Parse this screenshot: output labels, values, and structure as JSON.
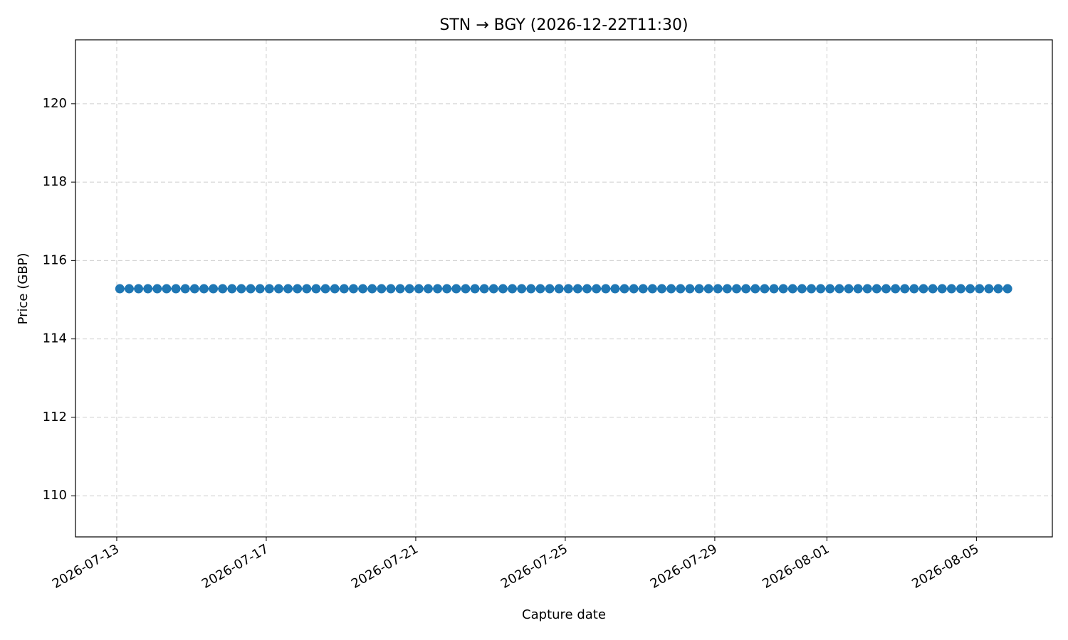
{
  "chart_data": {
    "type": "line",
    "title": "STN → BGY (2026-12-22T11:30)",
    "x_label": "Capture date",
    "y_label": "Price (GBP)",
    "x": [
      "2026-07-13T02:00",
      "2026-07-13T08:00",
      "2026-07-13T14:00",
      "2026-07-13T20:00",
      "2026-07-14T02:00",
      "2026-07-14T08:00",
      "2026-07-14T14:00",
      "2026-07-14T20:00",
      "2026-07-15T02:00",
      "2026-07-15T08:00",
      "2026-07-15T14:00",
      "2026-07-15T20:00",
      "2026-07-16T02:00",
      "2026-07-16T08:00",
      "2026-07-16T14:00",
      "2026-07-16T20:00",
      "2026-07-17T02:00",
      "2026-07-17T08:00",
      "2026-07-17T14:00",
      "2026-07-17T20:00",
      "2026-07-18T02:00",
      "2026-07-18T08:00",
      "2026-07-18T14:00",
      "2026-07-18T20:00",
      "2026-07-19T02:00",
      "2026-07-19T08:00",
      "2026-07-19T14:00",
      "2026-07-19T20:00",
      "2026-07-20T02:00",
      "2026-07-20T08:00",
      "2026-07-20T14:00",
      "2026-07-20T20:00",
      "2026-07-21T02:00",
      "2026-07-21T08:00",
      "2026-07-21T14:00",
      "2026-07-21T20:00",
      "2026-07-22T02:00",
      "2026-07-22T08:00",
      "2026-07-22T14:00",
      "2026-07-22T20:00",
      "2026-07-23T02:00",
      "2026-07-23T08:00",
      "2026-07-23T14:00",
      "2026-07-23T20:00",
      "2026-07-24T02:00",
      "2026-07-24T08:00",
      "2026-07-24T14:00",
      "2026-07-24T20:00",
      "2026-07-25T02:00",
      "2026-07-25T08:00",
      "2026-07-25T14:00",
      "2026-07-25T20:00",
      "2026-07-26T02:00",
      "2026-07-26T08:00",
      "2026-07-26T14:00",
      "2026-07-26T20:00",
      "2026-07-27T02:00",
      "2026-07-27T08:00",
      "2026-07-27T14:00",
      "2026-07-27T20:00",
      "2026-07-28T02:00",
      "2026-07-28T08:00",
      "2026-07-28T14:00",
      "2026-07-28T20:00",
      "2026-07-29T02:00",
      "2026-07-29T08:00",
      "2026-07-29T14:00",
      "2026-07-29T20:00",
      "2026-07-30T02:00",
      "2026-07-30T08:00",
      "2026-07-30T14:00",
      "2026-07-30T20:00",
      "2026-07-31T02:00",
      "2026-07-31T08:00",
      "2026-07-31T14:00",
      "2026-07-31T20:00",
      "2026-08-01T02:00",
      "2026-08-01T08:00",
      "2026-08-01T14:00",
      "2026-08-01T20:00",
      "2026-08-02T02:00",
      "2026-08-02T08:00",
      "2026-08-02T14:00",
      "2026-08-02T20:00",
      "2026-08-03T02:00",
      "2026-08-03T08:00",
      "2026-08-03T14:00",
      "2026-08-03T20:00",
      "2026-08-04T02:00",
      "2026-08-04T08:00",
      "2026-08-04T14:00",
      "2026-08-04T20:00",
      "2026-08-05T02:00",
      "2026-08-05T08:00",
      "2026-08-05T14:00",
      "2026-08-05T20:00"
    ],
    "values": [
      115.28,
      115.28,
      115.28,
      115.28,
      115.28,
      115.28,
      115.28,
      115.28,
      115.28,
      115.28,
      115.28,
      115.28,
      115.28,
      115.28,
      115.28,
      115.28,
      115.28,
      115.28,
      115.28,
      115.28,
      115.28,
      115.28,
      115.28,
      115.28,
      115.28,
      115.28,
      115.28,
      115.28,
      115.28,
      115.28,
      115.28,
      115.28,
      115.28,
      115.28,
      115.28,
      115.28,
      115.28,
      115.28,
      115.28,
      115.28,
      115.28,
      115.28,
      115.28,
      115.28,
      115.28,
      115.28,
      115.28,
      115.28,
      115.28,
      115.28,
      115.28,
      115.28,
      115.28,
      115.28,
      115.28,
      115.28,
      115.28,
      115.28,
      115.28,
      115.28,
      115.28,
      115.28,
      115.28,
      115.28,
      115.28,
      115.28,
      115.28,
      115.28,
      115.28,
      115.28,
      115.28,
      115.28,
      115.28,
      115.28,
      115.28,
      115.28,
      115.28,
      115.28,
      115.28,
      115.28,
      115.28,
      115.28,
      115.28,
      115.28,
      115.28,
      115.28,
      115.28,
      115.28,
      115.28,
      115.28,
      115.28,
      115.28,
      115.28,
      115.28,
      115.28,
      115.28
    ],
    "color": "#1f77b4",
    "marker": true,
    "xlim": [
      "2026-07-11T21:30",
      "2026-08-07T00:45"
    ],
    "xticks": [
      "2026-07-13",
      "2026-07-17",
      "2026-07-21",
      "2026-07-25",
      "2026-07-29",
      "2026-08-01",
      "2026-08-05"
    ],
    "ylim": [
      108.95,
      121.63
    ],
    "yticks": [
      110,
      112,
      114,
      116,
      118,
      120
    ],
    "grid": true
  }
}
